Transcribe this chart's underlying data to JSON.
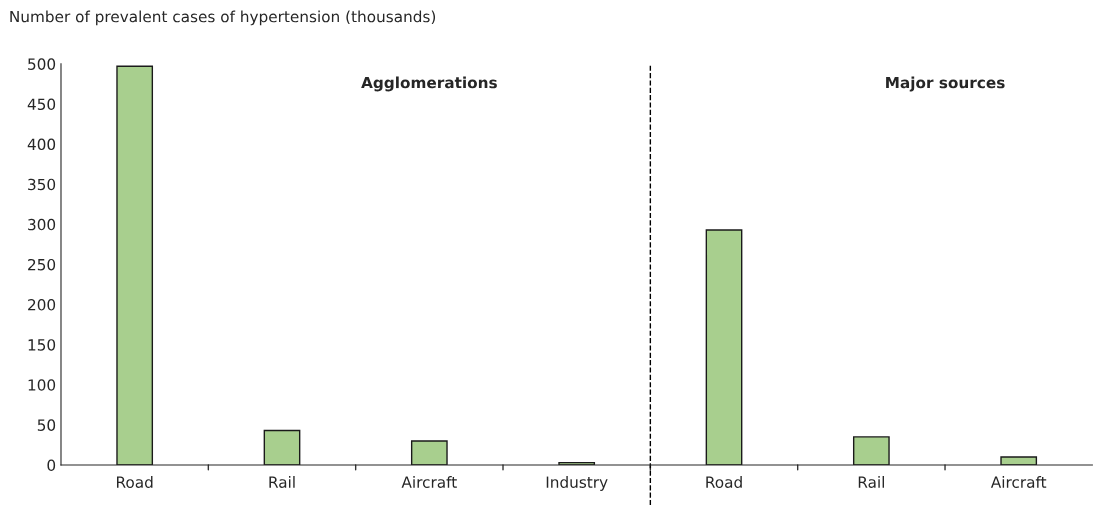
{
  "chart_data": {
    "type": "bar",
    "ylabel": "Number of prevalent cases of hypertension (thousands)",
    "categories": [
      "Road",
      "Rail",
      "Aircraft",
      "Industry",
      "Road",
      "Rail",
      "Aircraft"
    ],
    "values": [
      497,
      43,
      30,
      3,
      293,
      35,
      10
    ],
    "color": "#a8cf8e",
    "ylim": [
      0,
      500
    ],
    "yticks": [
      0,
      50,
      100,
      150,
      200,
      250,
      300,
      350,
      400,
      450,
      500
    ],
    "annotations": [
      "Agglomerations",
      "Major sources"
    ],
    "grid": false,
    "legend": false
  }
}
